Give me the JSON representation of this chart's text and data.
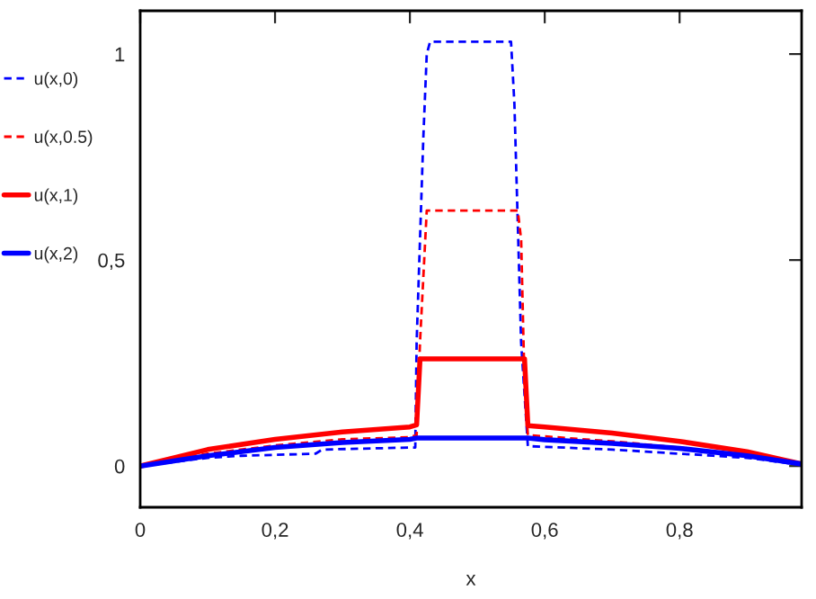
{
  "chart_data": {
    "type": "line",
    "xlabel": "x",
    "xlim": [
      0,
      0.981
    ],
    "ylim": [
      -0.1,
      1.105
    ],
    "xticks": [
      0,
      {
        "value": 0.2,
        "label": "0,2"
      },
      {
        "value": 0.4,
        "label": "0,4"
      },
      {
        "value": 0.6,
        "label": "0,6"
      },
      {
        "value": 0.8,
        "label": "0,8"
      }
    ],
    "yticks": [
      0,
      {
        "value": 0.5,
        "label": "0,5"
      },
      1
    ],
    "grid": false,
    "legend": "left",
    "marker": "none",
    "series": [
      {
        "name": "u(x,0)",
        "color": "#0000ff",
        "line_style": "dashed",
        "x": [
          0,
          0.05,
          0.1,
          0.15,
          0.26,
          0.27,
          0.4,
          0.408,
          0.41,
          0.42,
          0.425,
          0.43,
          0.55,
          0.555,
          0.565,
          0.575,
          0.58,
          0.7,
          0.75,
          0.85,
          0.9,
          0.981
        ],
        "values": [
          0,
          0.01,
          0.02,
          0.025,
          0.03,
          0.04,
          0.045,
          0.045,
          0.3,
          0.8,
          1.0,
          1.03,
          1.03,
          0.88,
          0.3,
          0.048,
          0.048,
          0.04,
          0.035,
          0.025,
          0.02,
          0.003
        ]
      },
      {
        "name": "u(x,0.5)",
        "color": "#ff0000",
        "line_style": "dashed",
        "x": [
          0,
          0.1,
          0.2,
          0.3,
          0.4,
          0.41,
          0.415,
          0.425,
          0.56,
          0.565,
          0.57,
          0.575,
          0.6,
          0.7,
          0.8,
          0.9,
          0.981
        ],
        "values": [
          0,
          0.03,
          0.05,
          0.065,
          0.07,
          0.075,
          0.3,
          0.62,
          0.62,
          0.55,
          0.2,
          0.075,
          0.072,
          0.06,
          0.045,
          0.025,
          0.003
        ]
      },
      {
        "name": "u(x,1)",
        "color": "#ff0000",
        "line_style": "solid",
        "x": [
          0,
          0.1,
          0.2,
          0.3,
          0.4,
          0.41,
          0.415,
          0.57,
          0.575,
          0.6,
          0.7,
          0.8,
          0.9,
          0.981
        ],
        "values": [
          0,
          0.04,
          0.065,
          0.083,
          0.095,
          0.1,
          0.26,
          0.26,
          0.098,
          0.095,
          0.08,
          0.06,
          0.035,
          0.005
        ]
      },
      {
        "name": "u(x,2)",
        "color": "#0000ff",
        "line_style": "solid",
        "x": [
          0,
          0.1,
          0.2,
          0.3,
          0.4,
          0.41,
          0.575,
          0.6,
          0.7,
          0.8,
          0.9,
          0.981
        ],
        "values": [
          0,
          0.025,
          0.045,
          0.057,
          0.065,
          0.068,
          0.068,
          0.064,
          0.055,
          0.043,
          0.025,
          0.005
        ]
      }
    ]
  }
}
